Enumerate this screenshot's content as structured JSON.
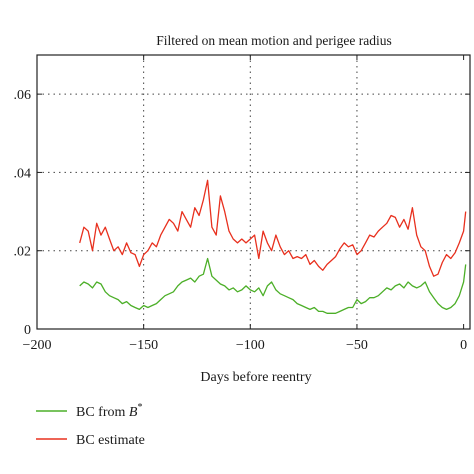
{
  "chart_data": {
    "type": "line",
    "title": "Filtered on mean motion and perigee radius",
    "xlabel": "Days before reentry",
    "ylabel": "",
    "xlim": [
      -200,
      3
    ],
    "ylim": [
      0,
      0.07
    ],
    "x_ticks": [
      -200,
      -150,
      -100,
      -50,
      0
    ],
    "x_tick_labels": [
      "−200",
      "−150",
      "−100",
      "−50",
      "0"
    ],
    "y_ticks": [
      0,
      0.02,
      0.04,
      0.06
    ],
    "y_tick_labels": [
      "0",
      ".02",
      ".04",
      ".06"
    ],
    "grid": "dotted, y at .02/.04/.06 and x at -150/-100/-50",
    "legend_position": "below plot",
    "series": [
      {
        "name": "BC from B*",
        "color": "#4caf28",
        "x": [
          -180,
          -178,
          -176,
          -174,
          -172,
          -170,
          -168,
          -166,
          -164,
          -162,
          -160,
          -158,
          -156,
          -154,
          -152,
          -150,
          -148,
          -146,
          -144,
          -142,
          -140,
          -138,
          -136,
          -134,
          -132,
          -130,
          -128,
          -126,
          -124,
          -122,
          -120,
          -118,
          -116,
          -114,
          -112,
          -110,
          -108,
          -106,
          -104,
          -102,
          -100,
          -98,
          -96,
          -94,
          -92,
          -90,
          -88,
          -86,
          -84,
          -82,
          -80,
          -78,
          -76,
          -74,
          -72,
          -70,
          -68,
          -66,
          -64,
          -62,
          -60,
          -58,
          -56,
          -54,
          -52,
          -50,
          -48,
          -46,
          -44,
          -42,
          -40,
          -38,
          -36,
          -34,
          -32,
          -30,
          -28,
          -26,
          -24,
          -22,
          -20,
          -18,
          -16,
          -14,
          -12,
          -10,
          -8,
          -6,
          -4,
          -2,
          0,
          1
        ],
        "values": [
          0.011,
          0.012,
          0.0115,
          0.0105,
          0.012,
          0.0115,
          0.0095,
          0.0085,
          0.008,
          0.0075,
          0.0065,
          0.007,
          0.006,
          0.0055,
          0.005,
          0.006,
          0.0055,
          0.006,
          0.0065,
          0.0075,
          0.0085,
          0.009,
          0.0095,
          0.011,
          0.012,
          0.0125,
          0.013,
          0.012,
          0.0135,
          0.014,
          0.018,
          0.0135,
          0.0125,
          0.0115,
          0.011,
          0.01,
          0.0105,
          0.0095,
          0.01,
          0.011,
          0.01,
          0.0095,
          0.0105,
          0.0085,
          0.011,
          0.012,
          0.01,
          0.009,
          0.0085,
          0.008,
          0.0075,
          0.0065,
          0.006,
          0.0055,
          0.005,
          0.0055,
          0.0045,
          0.0045,
          0.004,
          0.004,
          0.004,
          0.0045,
          0.005,
          0.0055,
          0.0055,
          0.0075,
          0.0065,
          0.007,
          0.008,
          0.008,
          0.0085,
          0.0095,
          0.0105,
          0.01,
          0.011,
          0.0115,
          0.0105,
          0.012,
          0.011,
          0.0105,
          0.011,
          0.012,
          0.0095,
          0.008,
          0.0065,
          0.0055,
          0.005,
          0.0055,
          0.0065,
          0.0085,
          0.012,
          0.0165
        ]
      },
      {
        "name": "BC estimate",
        "color": "#e8301e",
        "x": [
          -180,
          -178,
          -176,
          -174,
          -172,
          -170,
          -168,
          -166,
          -164,
          -162,
          -160,
          -158,
          -156,
          -154,
          -152,
          -150,
          -148,
          -146,
          -144,
          -142,
          -140,
          -138,
          -136,
          -134,
          -132,
          -130,
          -128,
          -126,
          -124,
          -122,
          -120,
          -118,
          -116,
          -114,
          -112,
          -110,
          -108,
          -106,
          -104,
          -102,
          -100,
          -98,
          -96,
          -94,
          -92,
          -90,
          -88,
          -86,
          -84,
          -82,
          -80,
          -78,
          -76,
          -74,
          -72,
          -70,
          -68,
          -66,
          -64,
          -62,
          -60,
          -58,
          -56,
          -54,
          -52,
          -50,
          -48,
          -46,
          -44,
          -42,
          -40,
          -38,
          -36,
          -34,
          -32,
          -30,
          -28,
          -26,
          -24,
          -22,
          -20,
          -18,
          -16,
          -14,
          -12,
          -10,
          -8,
          -6,
          -4,
          -2,
          0,
          1
        ],
        "values": [
          0.022,
          0.026,
          0.025,
          0.02,
          0.027,
          0.024,
          0.026,
          0.023,
          0.02,
          0.021,
          0.019,
          0.022,
          0.0195,
          0.019,
          0.016,
          0.019,
          0.02,
          0.022,
          0.021,
          0.024,
          0.026,
          0.028,
          0.027,
          0.025,
          0.03,
          0.028,
          0.026,
          0.031,
          0.029,
          0.033,
          0.038,
          0.026,
          0.024,
          0.034,
          0.03,
          0.025,
          0.023,
          0.022,
          0.023,
          0.022,
          0.023,
          0.024,
          0.018,
          0.025,
          0.022,
          0.02,
          0.024,
          0.021,
          0.019,
          0.02,
          0.018,
          0.0185,
          0.018,
          0.019,
          0.0165,
          0.0175,
          0.016,
          0.015,
          0.0165,
          0.0175,
          0.0185,
          0.0205,
          0.022,
          0.021,
          0.0215,
          0.019,
          0.02,
          0.022,
          0.024,
          0.0235,
          0.025,
          0.026,
          0.027,
          0.029,
          0.0285,
          0.026,
          0.028,
          0.0255,
          0.031,
          0.024,
          0.021,
          0.02,
          0.016,
          0.0135,
          0.014,
          0.017,
          0.019,
          0.018,
          0.0195,
          0.022,
          0.025,
          0.03
        ]
      }
    ]
  }
}
